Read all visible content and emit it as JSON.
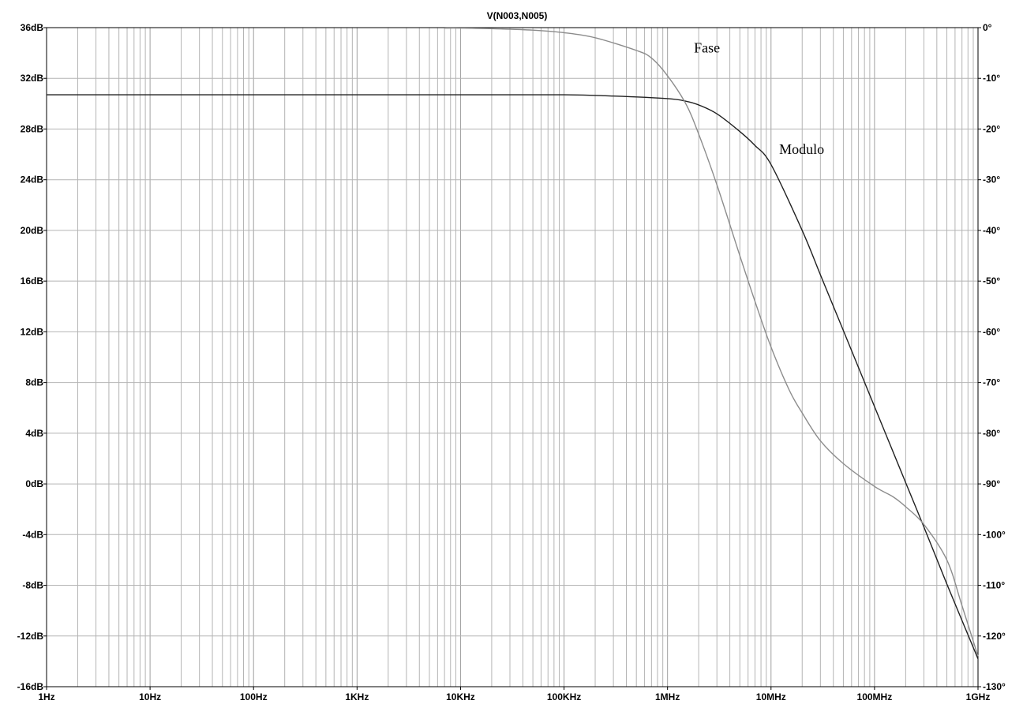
{
  "chart_data": {
    "type": "line",
    "title": "V(N003,N005)",
    "x_scale": "log",
    "x_range_hz": [
      1,
      1000000000
    ],
    "x_tick_values": [
      1,
      10,
      100,
      1000,
      10000,
      100000,
      1000000,
      10000000,
      100000000,
      1000000000
    ],
    "x_tick_labels": [
      "1Hz",
      "10Hz",
      "100Hz",
      "1KHz",
      "10KHz",
      "100KHz",
      "1MHz",
      "10MHz",
      "100MHz",
      "1GHz"
    ],
    "y_left_range_db": [
      -16,
      36
    ],
    "y_left_tick_values": [
      36,
      32,
      28,
      24,
      20,
      16,
      12,
      8,
      4,
      0,
      -4,
      -8,
      -12,
      -16
    ],
    "y_left_tick_labels": [
      "36dB",
      "32dB",
      "28dB",
      "24dB",
      "20dB",
      "16dB",
      "12dB",
      "8dB",
      "4dB",
      "0dB",
      "-4dB",
      "-8dB",
      "-12dB",
      "-16dB"
    ],
    "y_right_range_deg": [
      -130,
      0
    ],
    "y_right_tick_values": [
      0,
      -10,
      -20,
      -30,
      -40,
      -50,
      -60,
      -70,
      -80,
      -90,
      -100,
      -110,
      -120,
      -130
    ],
    "y_right_tick_labels": [
      "0°",
      "-10°",
      "-20°",
      "-30°",
      "-40°",
      "-50°",
      "-60°",
      "-70°",
      "-80°",
      "-90°",
      "-100°",
      "-110°",
      "-120°",
      "-130°"
    ],
    "grid": true,
    "series": [
      {
        "name": "Modulo",
        "axis": "left",
        "color": "#202020",
        "x": [
          1,
          10,
          100,
          1000,
          10000,
          100000,
          300000,
          1000000,
          1500000,
          2000000,
          3000000,
          5000000,
          7000000,
          10000000,
          20000000,
          30000000,
          50000000,
          100000000,
          200000000,
          300000000,
          500000000,
          1000000000
        ],
        "y": [
          30.7,
          30.7,
          30.7,
          30.7,
          30.7,
          30.7,
          30.6,
          30.4,
          30.2,
          29.9,
          29.2,
          27.8,
          26.7,
          25.2,
          20.0,
          16.5,
          12.1,
          6.1,
          0.1,
          -3.4,
          -7.9,
          -13.8
        ]
      },
      {
        "name": "Fase",
        "axis": "right",
        "color": "#8c8c8c",
        "x": [
          7000,
          10000,
          20000,
          50000,
          100000,
          200000,
          500000,
          700000,
          1000000,
          1500000,
          2000000,
          3000000,
          5000000,
          7000000,
          10000000,
          15000000,
          20000000,
          30000000,
          50000000,
          100000000,
          150000000,
          200000000,
          300000000,
          500000000,
          700000000,
          1000000000
        ],
        "y": [
          -0.1,
          -0.1,
          -0.2,
          -0.5,
          -1.0,
          -2.0,
          -4.5,
          -6.0,
          -9.5,
          -15.0,
          -21.0,
          -31.0,
          -45.0,
          -54.0,
          -63.0,
          -71.5,
          -76.0,
          -81.5,
          -86.0,
          -90.5,
          -92.5,
          -94.5,
          -98.0,
          -105.0,
          -114.0,
          -124.0
        ]
      }
    ],
    "annotations": [
      {
        "text": "Fase",
        "x": 1800000,
        "y_deg": -4
      },
      {
        "text": "Modulo",
        "x": 12000000,
        "y_deg": -24
      }
    ]
  }
}
